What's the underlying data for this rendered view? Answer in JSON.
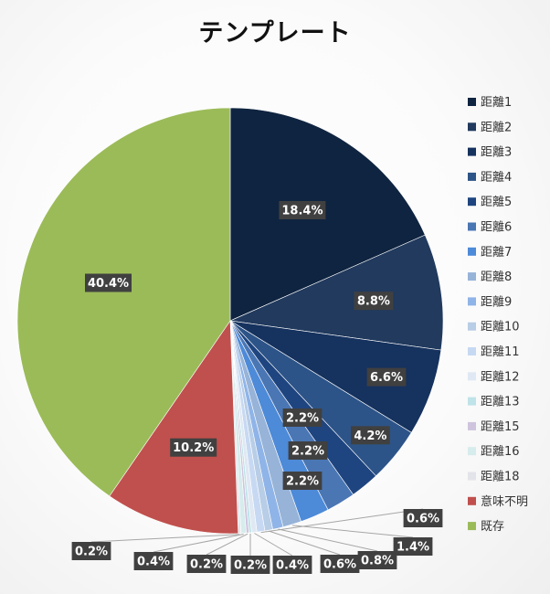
{
  "chart_data": {
    "type": "pie",
    "title": "テンプレート",
    "legend_position": "right",
    "slices": [
      {
        "label": "距離1",
        "value": 18.4,
        "display": "18.4%",
        "color": "#0f2440"
      },
      {
        "label": "距離2",
        "value": 8.8,
        "display": "8.8%",
        "color": "#213a5e"
      },
      {
        "label": "距離3",
        "value": 6.6,
        "display": "6.6%",
        "color": "#16325e"
      },
      {
        "label": "距離4",
        "value": 4.2,
        "display": "4.2%",
        "color": "#2d5488"
      },
      {
        "label": "距離5",
        "value": 2.2,
        "display": "2.2%",
        "color": "#1f4580"
      },
      {
        "label": "距離6",
        "value": 2.2,
        "display": "2.2%",
        "color": "#4a76b4"
      },
      {
        "label": "距離7",
        "value": 2.2,
        "display": "2.2%",
        "color": "#4d8ad8"
      },
      {
        "label": "距離8",
        "value": 1.4,
        "display": "1.4%",
        "color": "#97b3d8"
      },
      {
        "label": "距離9",
        "value": 0.8,
        "display": "0.8%",
        "color": "#8fb4e8"
      },
      {
        "label": "距離10",
        "value": 0.6,
        "display": "0.6%",
        "color": "#b8cde6"
      },
      {
        "label": "距離11",
        "value": 0.6,
        "display": "0.6%",
        "color": "#c7d9f2"
      },
      {
        "label": "距離12",
        "value": 0.4,
        "display": "0.4%",
        "color": "#dfe8f3"
      },
      {
        "label": "距離13",
        "value": 0.2,
        "display": "0.2%",
        "color": "#bfe3e8"
      },
      {
        "label": "距離15",
        "value": 0.2,
        "display": "0.2%",
        "color": "#cfc4de"
      },
      {
        "label": "距離16",
        "value": 0.4,
        "display": "0.4%",
        "color": "#d7ecec"
      },
      {
        "label": "距離18",
        "value": 0.2,
        "display": "0.2%",
        "color": "#e3e3ea"
      },
      {
        "label": "意味不明",
        "value": 10.2,
        "display": "10.2%",
        "color": "#c0504d"
      },
      {
        "label": "既存",
        "value": 40.4,
        "display": "40.4%",
        "color": "#9bbb59"
      }
    ]
  }
}
